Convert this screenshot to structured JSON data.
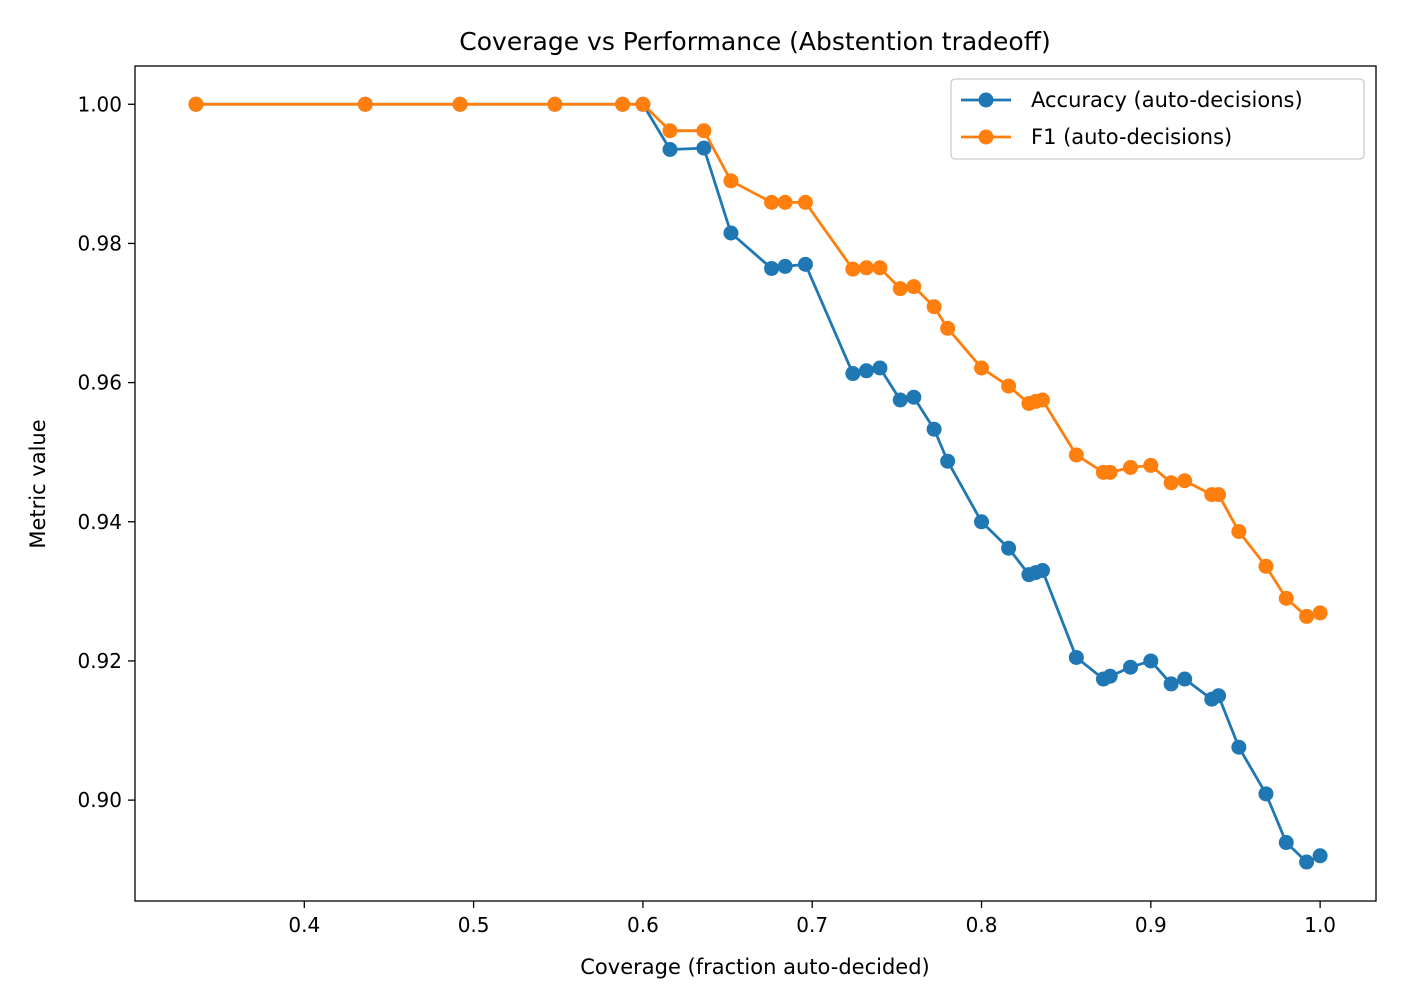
{
  "chart_data": {
    "type": "line",
    "title": "Coverage vs Performance (Abstention tradeoff)",
    "xlabel": "Coverage (fraction auto-decided)",
    "ylabel": "Metric value",
    "xlim": [
      0.3,
      1.033
    ],
    "ylim": [
      0.8855,
      1.0055
    ],
    "xticks": [
      0.4,
      0.5,
      0.6,
      0.7,
      0.8,
      0.9,
      1.0
    ],
    "xtick_labels": [
      "0.4",
      "0.5",
      "0.6",
      "0.7",
      "0.8",
      "0.9",
      "1.0"
    ],
    "yticks": [
      0.9,
      0.92,
      0.94,
      0.96,
      0.98,
      1.0
    ],
    "ytick_labels": [
      "0.90",
      "0.92",
      "0.94",
      "0.96",
      "0.98",
      "1.00"
    ],
    "grid": false,
    "legend_position": "top-right",
    "series": [
      {
        "name": "Accuracy (auto-decisions)",
        "color": "#1f77b4",
        "marker": "circle",
        "points": [
          [
            0.336,
            1.0
          ],
          [
            0.436,
            1.0
          ],
          [
            0.492,
            1.0
          ],
          [
            0.548,
            1.0
          ],
          [
            0.588,
            1.0
          ],
          [
            0.6,
            1.0
          ],
          [
            0.616,
            0.9935
          ],
          [
            0.636,
            0.9937
          ],
          [
            0.652,
            0.9815
          ],
          [
            0.676,
            0.9764
          ],
          [
            0.684,
            0.9767
          ],
          [
            0.696,
            0.977
          ],
          [
            0.724,
            0.9613
          ],
          [
            0.732,
            0.9617
          ],
          [
            0.74,
            0.9621
          ],
          [
            0.752,
            0.9575
          ],
          [
            0.76,
            0.9579
          ],
          [
            0.772,
            0.9533
          ],
          [
            0.78,
            0.9487
          ],
          [
            0.8,
            0.94
          ],
          [
            0.816,
            0.9362
          ],
          [
            0.828,
            0.9324
          ],
          [
            0.832,
            0.9327
          ],
          [
            0.836,
            0.933
          ],
          [
            0.856,
            0.9205
          ],
          [
            0.872,
            0.9174
          ],
          [
            0.876,
            0.9178
          ],
          [
            0.888,
            0.9191
          ],
          [
            0.9,
            0.92
          ],
          [
            0.912,
            0.9167
          ],
          [
            0.92,
            0.9174
          ],
          [
            0.936,
            0.9145
          ],
          [
            0.94,
            0.915
          ],
          [
            0.952,
            0.9076
          ],
          [
            0.968,
            0.9009
          ],
          [
            0.98,
            0.8939
          ],
          [
            0.992,
            0.8911
          ],
          [
            1.0,
            0.892
          ]
        ]
      },
      {
        "name": "F1 (auto-decisions)",
        "color": "#ff7f0e",
        "marker": "circle",
        "points": [
          [
            0.336,
            1.0
          ],
          [
            0.436,
            1.0
          ],
          [
            0.492,
            1.0
          ],
          [
            0.548,
            1.0
          ],
          [
            0.588,
            1.0
          ],
          [
            0.6,
            1.0
          ],
          [
            0.616,
            0.9962
          ],
          [
            0.636,
            0.9962
          ],
          [
            0.652,
            0.989
          ],
          [
            0.676,
            0.9859
          ],
          [
            0.684,
            0.9859
          ],
          [
            0.696,
            0.9859
          ],
          [
            0.724,
            0.9763
          ],
          [
            0.732,
            0.9765
          ],
          [
            0.74,
            0.9765
          ],
          [
            0.752,
            0.9735
          ],
          [
            0.76,
            0.9738
          ],
          [
            0.772,
            0.9709
          ],
          [
            0.78,
            0.9678
          ],
          [
            0.8,
            0.9621
          ],
          [
            0.816,
            0.9595
          ],
          [
            0.828,
            0.957
          ],
          [
            0.832,
            0.9573
          ],
          [
            0.836,
            0.9575
          ],
          [
            0.856,
            0.9496
          ],
          [
            0.872,
            0.9471
          ],
          [
            0.876,
            0.9471
          ],
          [
            0.888,
            0.9478
          ],
          [
            0.9,
            0.9481
          ],
          [
            0.912,
            0.9456
          ],
          [
            0.92,
            0.9459
          ],
          [
            0.936,
            0.9439
          ],
          [
            0.94,
            0.9439
          ],
          [
            0.952,
            0.9386
          ],
          [
            0.968,
            0.9336
          ],
          [
            0.98,
            0.929
          ],
          [
            0.992,
            0.9264
          ],
          [
            1.0,
            0.9269
          ]
        ]
      }
    ]
  }
}
